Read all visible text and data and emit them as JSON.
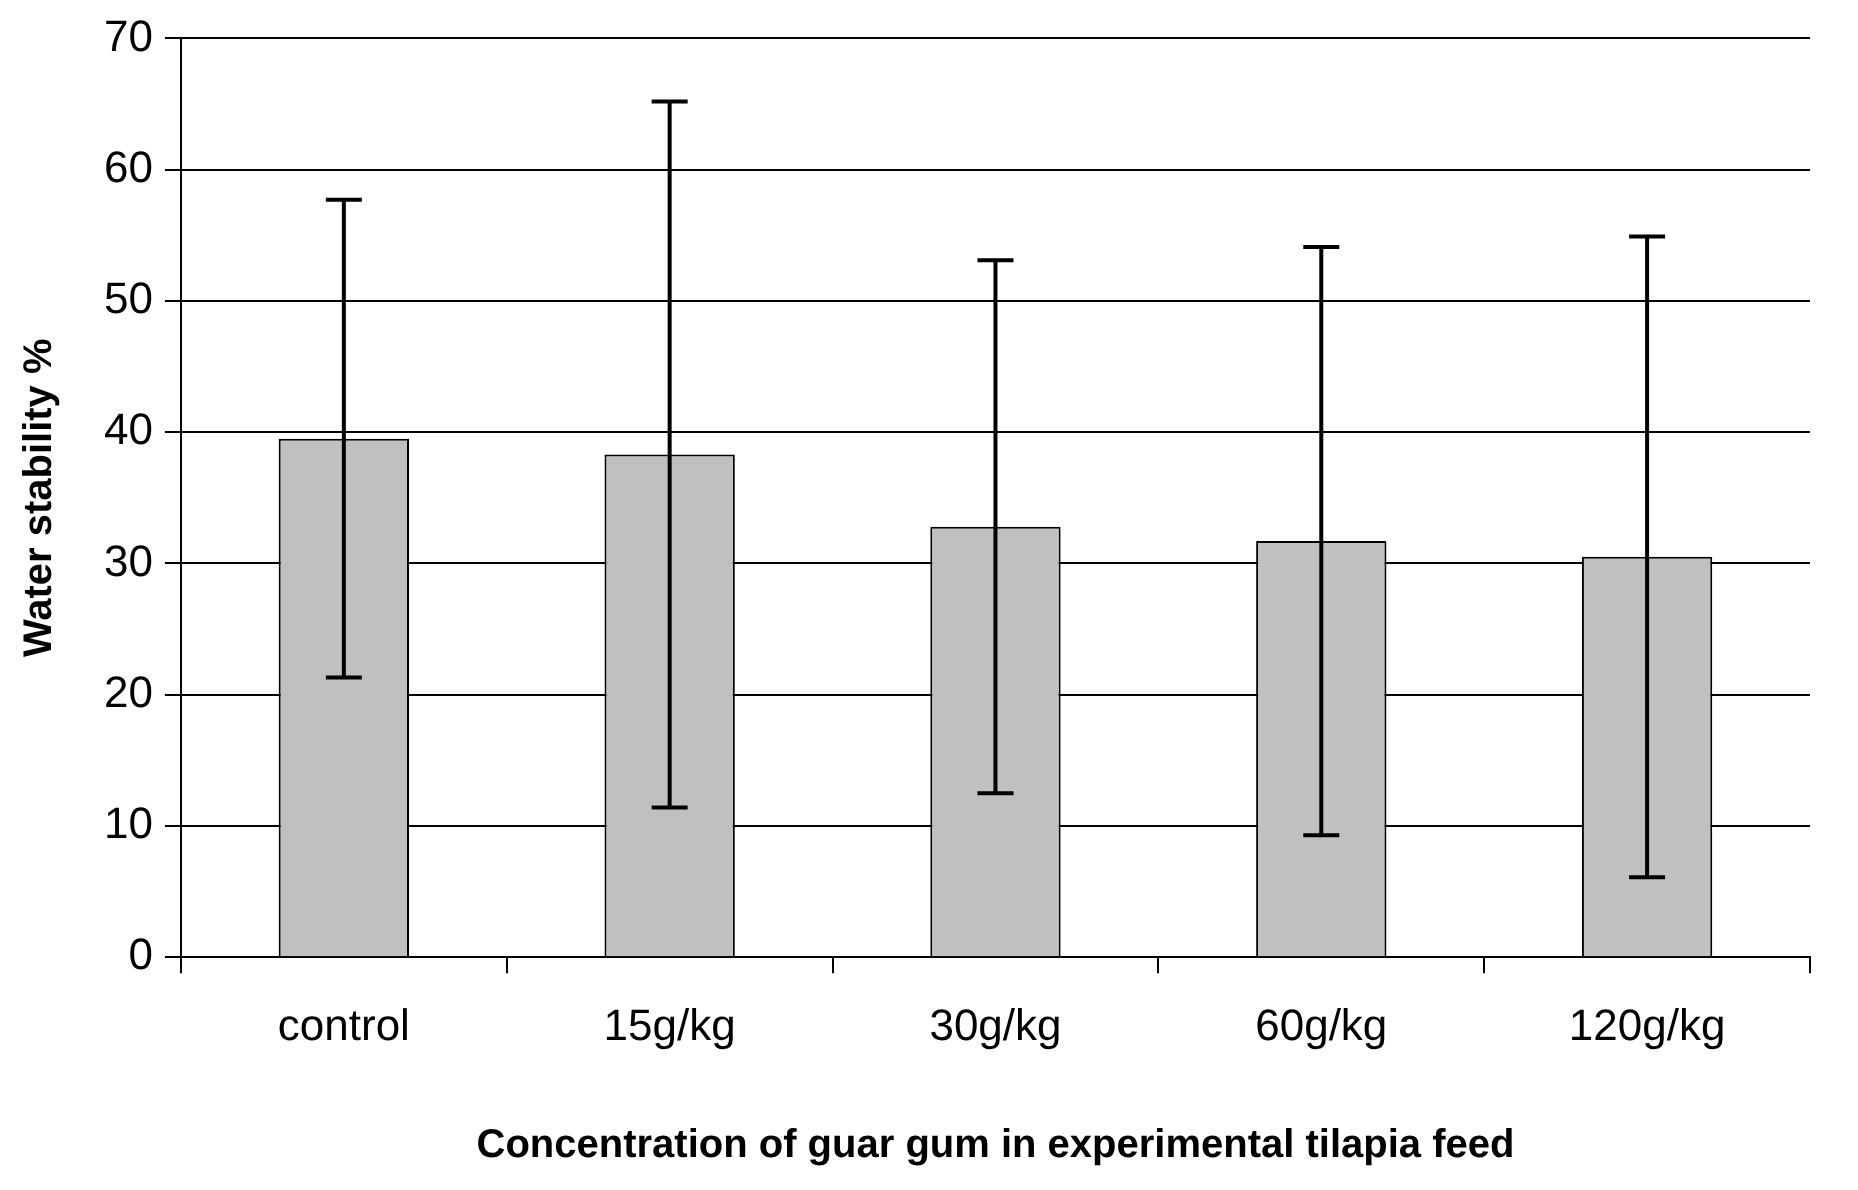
{
  "chart_data": {
    "type": "bar",
    "xlabel": "Concentration of guar gum in experimental tilapia feed",
    "ylabel": "Water stability %",
    "categories": [
      "control",
      "15g/kg",
      "30g/kg",
      "60g/kg",
      "120g/kg"
    ],
    "values": [
      39.5,
      38.3,
      32.8,
      31.7,
      30.5
    ],
    "errors": [
      18.2,
      26.9,
      20.3,
      22.4,
      24.4
    ],
    "color": "#c0c0c0",
    "ylim": [
      0,
      70
    ],
    "yticks": [
      0,
      10,
      20,
      30,
      40,
      50,
      60,
      70
    ],
    "grid": "y",
    "legend": false
  }
}
